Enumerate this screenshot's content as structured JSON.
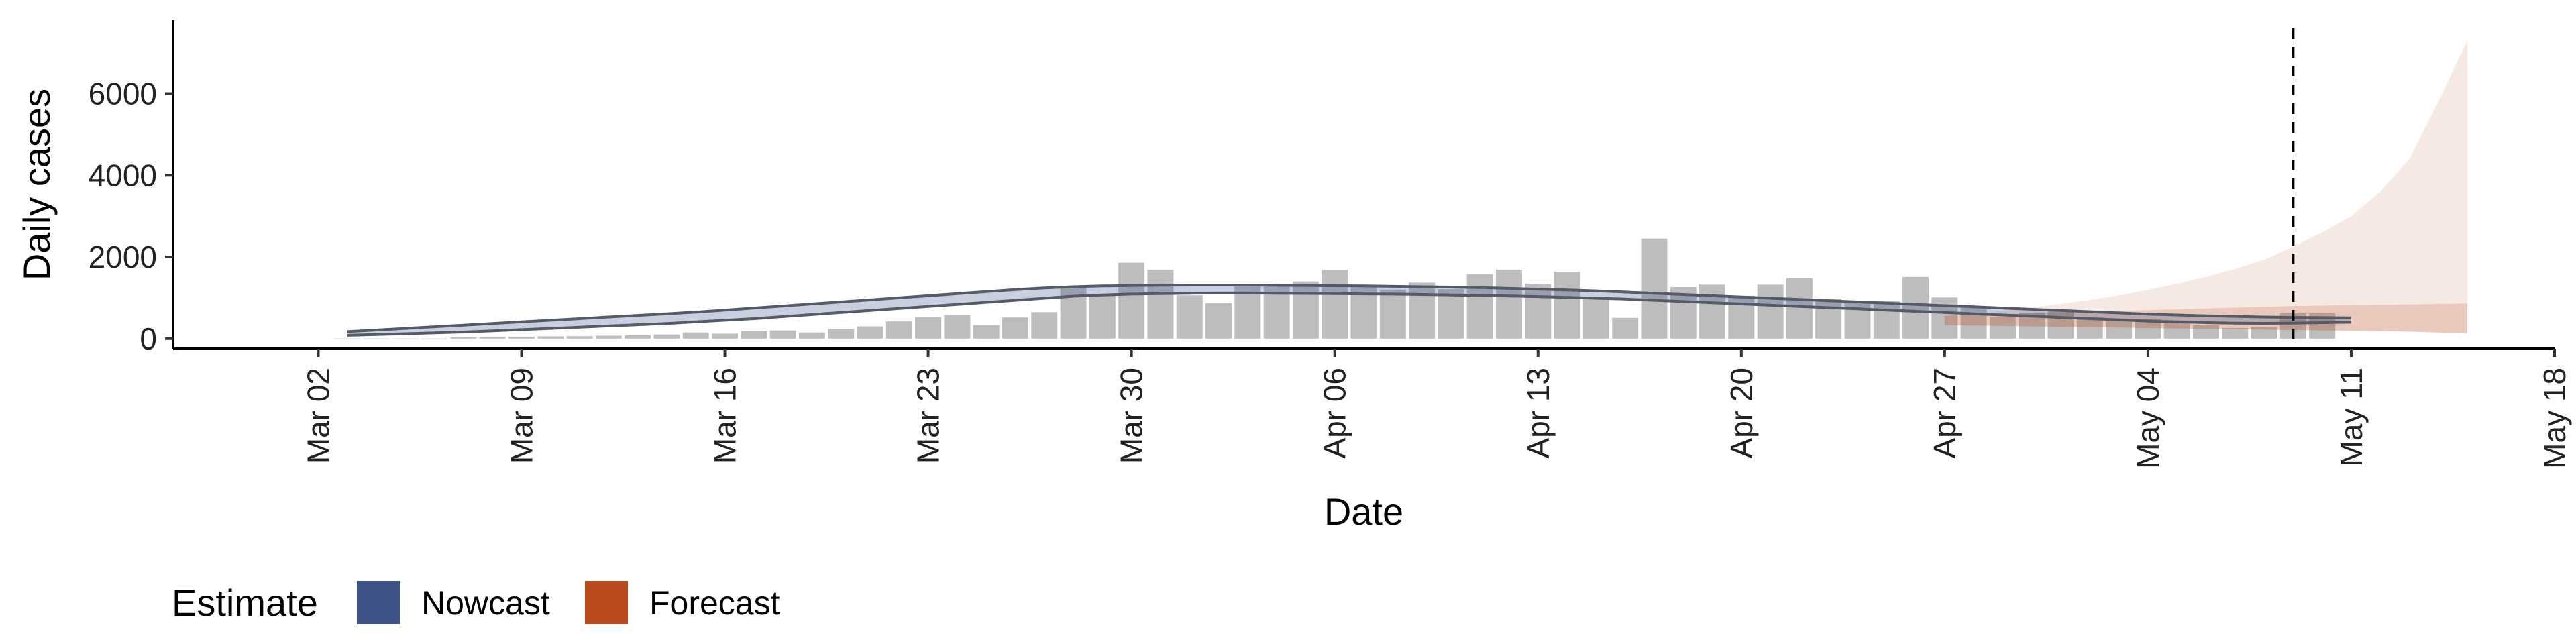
{
  "chart_data": {
    "type": "bar",
    "xlabel": "Date",
    "ylabel": "Daily cases",
    "x_start_date": "2020-03-02",
    "x_ticks": [
      "Mar 02",
      "Mar 09",
      "Mar 16",
      "Mar 23",
      "Mar 30",
      "Apr 06",
      "Apr 13",
      "Apr 20",
      "Apr 27",
      "May 04",
      "May 11",
      "May 18"
    ],
    "y_ticks": [
      "0",
      "2000",
      "4000",
      "6000"
    ],
    "ylim": [
      -250,
      7800
    ],
    "xlim_dates": [
      "2020-02-26",
      "2020-05-18"
    ],
    "grid": false,
    "bar_color": "#bdbdbd",
    "vline_date": "2020-05-09",
    "observed_cases": {
      "start_date": "2020-03-03",
      "values": [
        0,
        0,
        0,
        0,
        30,
        40,
        45,
        55,
        60,
        70,
        80,
        100,
        150,
        120,
        180,
        200,
        150,
        240,
        300,
        420,
        530,
        580,
        330,
        520,
        650,
        1280,
        1060,
        1860,
        1690,
        1060,
        870,
        1290,
        1330,
        1400,
        1680,
        1280,
        1200,
        1370,
        1210,
        1580,
        1690,
        1340,
        1640,
        1000,
        510,
        2450,
        1260,
        1320,
        1050,
        1320,
        1480,
        980,
        920,
        920,
        1510,
        1010,
        800,
        540,
        640,
        690,
        520,
        480,
        480,
        380,
        330,
        260,
        280,
        620,
        620
      ]
    },
    "series": [
      {
        "name": "Nowcast",
        "color": "#3e5488",
        "start_date": "2020-03-03",
        "median": [
          120,
          150,
          180,
          210,
          240,
          270,
          300,
          330,
          365,
          400,
          440,
          480,
          520,
          560,
          600,
          650,
          700,
          750,
          800,
          850,
          900,
          950,
          1000,
          1050,
          1100,
          1130,
          1150,
          1160,
          1170,
          1175,
          1180,
          1180,
          1180,
          1175,
          1170,
          1165,
          1160,
          1150,
          1140,
          1130,
          1115,
          1100,
          1080,
          1060,
          1040,
          1010,
          980,
          950,
          920,
          890,
          860,
          830,
          800,
          770,
          740,
          710,
          680,
          650,
          620,
          590,
          560,
          530,
          500,
          480,
          460,
          450,
          440,
          440,
          450,
          460
        ],
        "lower": [
          80,
          100,
          120,
          140,
          160,
          190,
          220,
          250,
          280,
          310,
          340,
          370,
          410,
          450,
          490,
          540,
          590,
          640,
          690,
          740,
          790,
          840,
          890,
          940,
          990,
          1040,
          1070,
          1090,
          1100,
          1110,
          1115,
          1115,
          1110,
          1105,
          1100,
          1095,
          1090,
          1080,
          1070,
          1060,
          1045,
          1030,
          1010,
          990,
          970,
          940,
          910,
          880,
          850,
          820,
          790,
          760,
          730,
          700,
          670,
          640,
          610,
          580,
          550,
          520,
          490,
          460,
          430,
          410,
          390,
          380,
          375,
          380,
          390,
          400
        ],
        "upper": [
          170,
          210,
          250,
          290,
          330,
          370,
          410,
          450,
          490,
          530,
          570,
          610,
          650,
          700,
          750,
          800,
          850,
          900,
          950,
          1000,
          1050,
          1100,
          1150,
          1200,
          1240,
          1270,
          1290,
          1300,
          1305,
          1310,
          1310,
          1310,
          1305,
          1300,
          1295,
          1290,
          1280,
          1270,
          1260,
          1250,
          1230,
          1210,
          1190,
          1170,
          1140,
          1110,
          1080,
          1050,
          1020,
          990,
          960,
          930,
          900,
          870,
          840,
          810,
          780,
          750,
          720,
          690,
          660,
          630,
          600,
          580,
          560,
          545,
          530,
          520,
          515,
          510
        ]
      },
      {
        "name": "Forecast",
        "color": "#b84a1c",
        "start_date": "2020-04-27",
        "median": [
          450,
          460,
          470,
          480,
          490,
          500,
          510,
          520,
          530,
          540,
          550,
          560,
          570,
          580,
          590,
          600,
          610,
          620,
          630
        ],
        "lower": [
          330,
          320,
          310,
          300,
          290,
          280,
          270,
          260,
          250,
          240,
          230,
          220,
          210,
          200,
          190,
          180,
          170,
          150,
          130
        ],
        "inner_upper": [
          560,
          580,
          600,
          620,
          640,
          660,
          680,
          700,
          720,
          740,
          760,
          780,
          800,
          810,
          820,
          830,
          840,
          850,
          860
        ],
        "upper": [
          560,
          620,
          680,
          760,
          850,
          950,
          1060,
          1190,
          1340,
          1510,
          1710,
          1930,
          2250,
          2600,
          3000,
          3600,
          4400,
          5800,
          7300
        ]
      }
    ],
    "legend": {
      "title": "Estimate",
      "placement": "bottom-left",
      "entries": [
        {
          "label": "Nowcast",
          "color": "#3e5488"
        },
        {
          "label": "Forecast",
          "color": "#b84a1c"
        }
      ]
    }
  }
}
